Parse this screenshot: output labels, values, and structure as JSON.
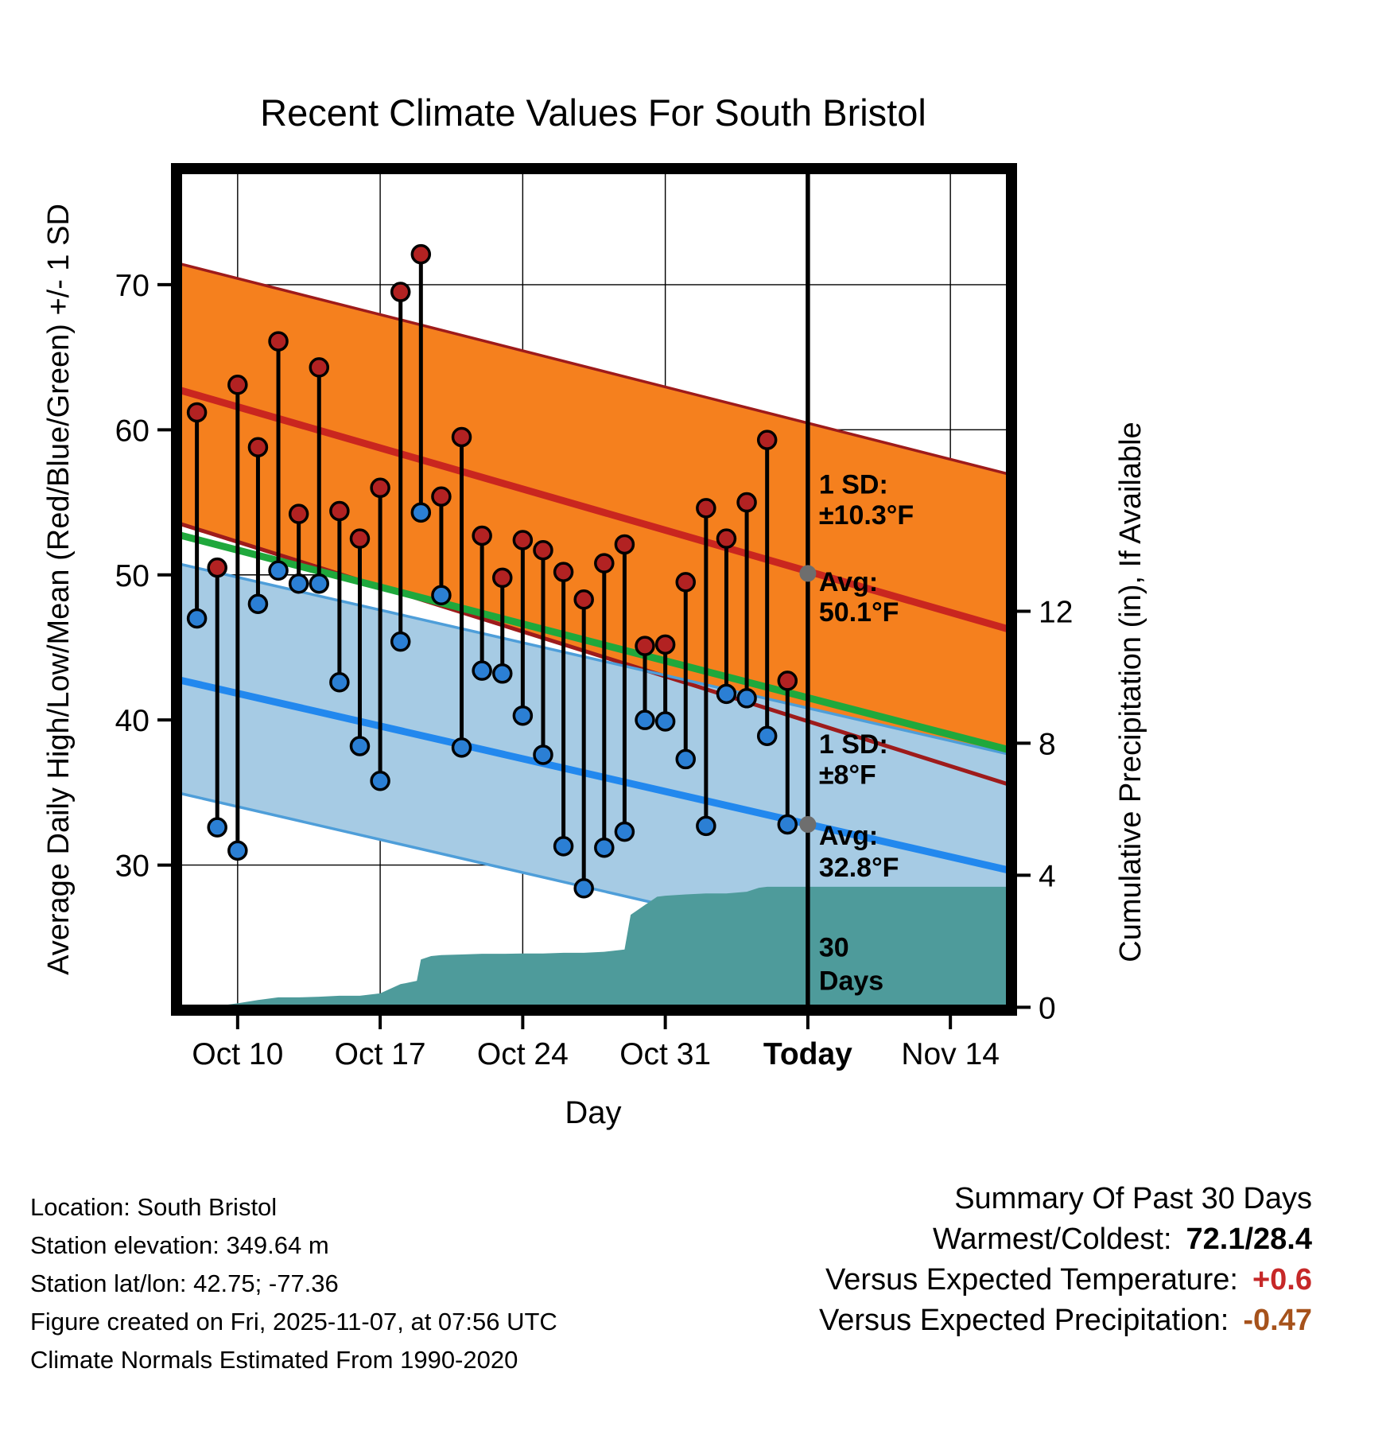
{
  "chart_data": {
    "type": "line",
    "title": "Recent Climate Values For South Bristol",
    "xlabel": "Day",
    "ylabel_left": "Average Daily High/Low/Mean (Red/Blue/Green) +/- 1 SD",
    "ylabel_right": "Cumulative Precipitation (in), If Available",
    "x_axis": {
      "range_days": [
        0,
        41
      ],
      "start_date": "Oct 7",
      "ticks": [
        {
          "label": "Oct 10",
          "day": 3,
          "bold": false
        },
        {
          "label": "Oct 17",
          "day": 10,
          "bold": false
        },
        {
          "label": "Oct 24",
          "day": 17,
          "bold": false
        },
        {
          "label": "Oct 31",
          "day": 24,
          "bold": false
        },
        {
          "label": "Today",
          "day": 31,
          "bold": true
        },
        {
          "label": "Nov 14",
          "day": 38,
          "bold": false
        }
      ]
    },
    "y_left": {
      "range": [
        20,
        78
      ],
      "ticks": [
        30,
        40,
        50,
        60,
        70
      ]
    },
    "y_right": {
      "ticks": [
        0,
        4,
        8,
        12
      ],
      "zero_at_temp": 20.2,
      "temp_per_inch": 2.2745
    },
    "today_day": 31,
    "window_label_lines": [
      "30",
      "Days"
    ],
    "normals": {
      "day_range": [
        0,
        41
      ],
      "high": {
        "upper": [
          71.5,
          56.9
        ],
        "center": [
          62.8,
          46.2
        ],
        "lower": [
          53.6,
          35.5
        ],
        "avg_today": "50.1°F",
        "sd_today": "±10.3°F"
      },
      "low": {
        "upper": [
          50.8,
          37.6
        ],
        "center": [
          42.8,
          29.6
        ],
        "lower": [
          35.0,
          21.7
        ],
        "avg_today": "32.8°F",
        "sd_today": "±8°F"
      },
      "mean": [
        52.8,
        37.9
      ]
    },
    "days": [
      {
        "date": "Oct 8",
        "day": 1,
        "high": 61.2,
        "low": 47.0
      },
      {
        "date": "Oct 9",
        "day": 2,
        "high": 50.5,
        "low": 32.6
      },
      {
        "date": "Oct 10",
        "day": 3,
        "high": 63.1,
        "low": 31.0
      },
      {
        "date": "Oct 11",
        "day": 4,
        "high": 58.8,
        "low": 48.0
      },
      {
        "date": "Oct 12",
        "day": 5,
        "high": 66.1,
        "low": 50.3
      },
      {
        "date": "Oct 13",
        "day": 6,
        "high": 54.2,
        "low": 49.4
      },
      {
        "date": "Oct 14",
        "day": 7,
        "high": 64.3,
        "low": 49.4
      },
      {
        "date": "Oct 15",
        "day": 8,
        "high": 54.4,
        "low": 42.6
      },
      {
        "date": "Oct 16",
        "day": 9,
        "high": 52.5,
        "low": 38.2
      },
      {
        "date": "Oct 17",
        "day": 10,
        "high": 56.0,
        "low": 35.8
      },
      {
        "date": "Oct 18",
        "day": 11,
        "high": 69.5,
        "low": 45.4
      },
      {
        "date": "Oct 19",
        "day": 12,
        "high": 72.1,
        "low": 54.3
      },
      {
        "date": "Oct 20",
        "day": 13,
        "high": 55.4,
        "low": 48.6
      },
      {
        "date": "Oct 21",
        "day": 14,
        "high": 59.5,
        "low": 38.1
      },
      {
        "date": "Oct 22",
        "day": 15,
        "high": 52.7,
        "low": 43.4
      },
      {
        "date": "Oct 23",
        "day": 16,
        "high": 49.8,
        "low": 43.2
      },
      {
        "date": "Oct 24",
        "day": 17,
        "high": 52.4,
        "low": 40.3
      },
      {
        "date": "Oct 25",
        "day": 18,
        "high": 51.7,
        "low": 37.6
      },
      {
        "date": "Oct 26",
        "day": 19,
        "high": 50.2,
        "low": 31.3
      },
      {
        "date": "Oct 27",
        "day": 20,
        "high": 48.3,
        "low": 28.4
      },
      {
        "date": "Oct 28",
        "day": 21,
        "high": 50.8,
        "low": 31.2
      },
      {
        "date": "Oct 29",
        "day": 22,
        "high": 52.1,
        "low": 32.3
      },
      {
        "date": "Oct 30",
        "day": 23,
        "high": 45.1,
        "low": 40.0
      },
      {
        "date": "Oct 31",
        "day": 24,
        "high": 45.2,
        "low": 39.9
      },
      {
        "date": "Nov 1",
        "day": 25,
        "high": 49.5,
        "low": 37.3
      },
      {
        "date": "Nov 2",
        "day": 26,
        "high": 54.6,
        "low": 32.7
      },
      {
        "date": "Nov 3",
        "day": 27,
        "high": 52.5,
        "low": 41.8
      },
      {
        "date": "Nov 4",
        "day": 28,
        "high": 55.0,
        "low": 41.5
      },
      {
        "date": "Nov 5",
        "day": 29,
        "high": 59.3,
        "low": 38.9
      },
      {
        "date": "Nov 6",
        "day": 30,
        "high": 42.7,
        "low": 32.8
      }
    ],
    "precip_cumulative_in": [
      [
        1,
        0.0
      ],
      [
        2,
        0.04
      ],
      [
        3,
        0.12
      ],
      [
        4,
        0.22
      ],
      [
        5,
        0.3
      ],
      [
        6,
        0.3
      ],
      [
        7,
        0.32
      ],
      [
        8,
        0.35
      ],
      [
        9,
        0.35
      ],
      [
        10,
        0.42
      ],
      [
        11,
        0.7
      ],
      [
        11.8,
        0.8
      ],
      [
        12,
        1.45
      ],
      [
        12.5,
        1.55
      ],
      [
        13,
        1.58
      ],
      [
        14,
        1.6
      ],
      [
        15,
        1.62
      ],
      [
        16,
        1.62
      ],
      [
        17,
        1.63
      ],
      [
        18,
        1.63
      ],
      [
        19,
        1.65
      ],
      [
        20,
        1.65
      ],
      [
        21,
        1.68
      ],
      [
        22,
        1.75
      ],
      [
        22.3,
        2.8
      ],
      [
        23,
        3.1
      ],
      [
        23.6,
        3.35
      ],
      [
        24,
        3.38
      ],
      [
        25,
        3.42
      ],
      [
        26,
        3.45
      ],
      [
        27,
        3.45
      ],
      [
        28,
        3.5
      ],
      [
        28.6,
        3.62
      ],
      [
        29,
        3.65
      ],
      [
        30,
        3.65
      ],
      [
        41,
        3.65
      ]
    ],
    "avg_markers": [
      {
        "day": 31,
        "temp": 50.1
      },
      {
        "day": 31,
        "temp": 32.8
      }
    ],
    "annotations": [
      {
        "text": "1 SD:",
        "day": 31,
        "temp": 55.6,
        "color": "#7a7a7a"
      },
      {
        "text": "±10.3°F",
        "day": 31,
        "temp": 53.5,
        "color": "#7a7a7a"
      },
      {
        "text": "Avg:",
        "day": 31,
        "temp": 48.9,
        "color": "#7a7a7a"
      },
      {
        "text": "50.1°F",
        "day": 31,
        "temp": 46.8,
        "color": "#7a7a7a"
      },
      {
        "text": "1 SD:",
        "day": 31,
        "temp": 37.7,
        "color": "#7a7a7a"
      },
      {
        "text": "±8°F",
        "day": 31,
        "temp": 35.6,
        "color": "#7a7a7a"
      },
      {
        "text": "Avg:",
        "day": 31,
        "temp": 31.4,
        "color": "#7a7a7a"
      },
      {
        "text": "32.8°F",
        "day": 31,
        "temp": 29.2,
        "color": "#7a7a7a"
      },
      {
        "text": "30",
        "day": 31,
        "temp": 23.7,
        "color": "#000000"
      },
      {
        "text": "Days",
        "day": 31,
        "temp": 21.4,
        "color": "#000000"
      }
    ],
    "colors": {
      "grid": "#000000",
      "border": "#000000",
      "high_band": "#F5801E",
      "high_band_edge": "#9E1B1B",
      "high_center": "#C9261F",
      "low_band": "#A6CBE4",
      "low_band_edge": "#4E9ED9",
      "low_center": "#2288EE",
      "mean_line": "#1FA83C",
      "precip_fill": "#4E9B9B",
      "high_dot": "#B22222",
      "low_dot": "#2B7FD4",
      "whisker": "#000000",
      "today_line": "#000000",
      "avg_marker": "#6e6e6e",
      "annotation_gray": "#7a7a7a"
    }
  },
  "footer": {
    "lines": [
      "Location: South Bristol",
      "Station elevation: 349.64 m",
      "Station lat/lon: 42.75; -77.36",
      "Figure created on Fri, 2025-11-07, at 07:56 UTC",
      "Climate Normals Estimated From 1990-2020"
    ]
  },
  "summary": {
    "title": "Summary Of Past 30 Days",
    "rows": [
      {
        "label": "Warmest/Coldest:",
        "value": "72.1/28.4",
        "color": "#000000"
      },
      {
        "label": "Versus Expected Temperature:",
        "value": "+0.6",
        "color": "#C62828"
      },
      {
        "label": "Versus Expected Precipitation:",
        "value": "-0.47",
        "color": "#A6521B"
      }
    ]
  }
}
